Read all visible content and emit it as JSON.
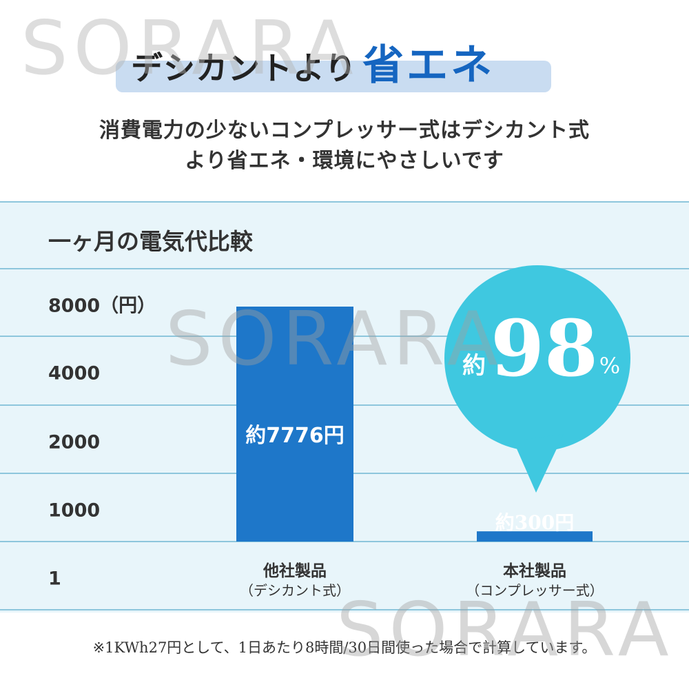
{
  "headline": {
    "prefix": "デシカントより",
    "accent": "省エネ"
  },
  "subtitle": {
    "line1": "消費電力の少ないコンプレッサー式はデシカント式",
    "line2": "より省エネ・環境にやさしいです"
  },
  "watermark": "SORARA",
  "chart_data": {
    "type": "bar",
    "title": "一ヶ月の電気代比較",
    "y_ticks": [
      "8000（円）",
      "4000",
      "2000",
      "1000",
      "1"
    ],
    "y_tick_values": [
      8000,
      4000,
      2000,
      1000,
      1
    ],
    "categories": [
      {
        "name": "他社製品",
        "sub": "（デシカント式）"
      },
      {
        "name": "本社製品",
        "sub": "（コンプレッサー式）"
      }
    ],
    "values": [
      7776,
      300
    ],
    "data_labels": [
      "約7776円",
      "約300円"
    ],
    "callout": {
      "prefix": "約",
      "value": "98",
      "unit": "%"
    },
    "colors": {
      "bar": "#1e77c9",
      "callout": "#3fc8e0",
      "grid": "#8dc6dc"
    }
  },
  "footnote": "※1KWh27円として、1日あたり8時間/30日間使った場合で計算しています。"
}
